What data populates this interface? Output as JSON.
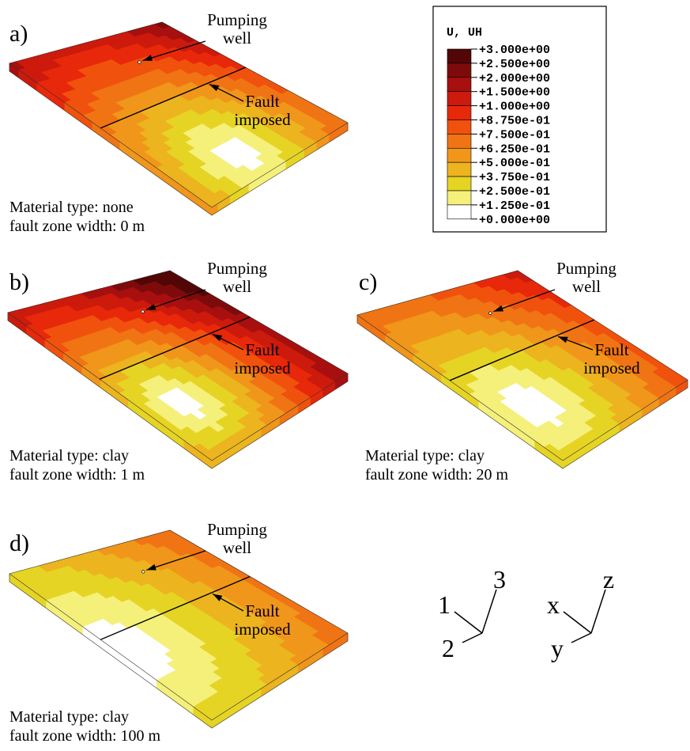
{
  "panels": [
    {
      "label": "a)",
      "well": [
        "Pumping",
        "well"
      ],
      "fault": [
        "Fault",
        "imposed"
      ],
      "material": "Material type: none",
      "width": "fault zone width: 0 m"
    },
    {
      "label": "b)",
      "well": [
        "Pumping",
        "well"
      ],
      "fault": [
        "Fault",
        "imposed"
      ],
      "material": "Material type: clay",
      "width": "fault zone width: 1 m"
    },
    {
      "label": "c)",
      "well": [
        "Pumping",
        "well"
      ],
      "fault": [
        "Fault",
        "imposed"
      ],
      "material": "Material type: clay",
      "width": "fault zone width: 20 m"
    },
    {
      "label": "d)",
      "well": [
        "Pumping",
        "well"
      ],
      "fault": [
        "Fault",
        "imposed"
      ],
      "material": "Material type: clay",
      "width": "fault zone width: 100 m"
    }
  ],
  "legend": {
    "title": "U, UH",
    "labels": [
      "+3.000e+00",
      "+2.500e+00",
      "+2.000e+00",
      "+1.500e+00",
      "+1.000e+00",
      "+8.750e-01",
      "+7.500e-01",
      "+6.250e-01",
      "+5.000e-01",
      "+3.750e-01",
      "+2.500e-01",
      "+1.250e-01",
      "+0.000e+00"
    ],
    "colors": [
      "#520606",
      "#7e0b0b",
      "#a80f0f",
      "#cc1a0c",
      "#e8280a",
      "#f0520e",
      "#f07414",
      "#f0961a",
      "#ecb41e",
      "#e6d424",
      "#f4f07a",
      "#ffffff"
    ]
  },
  "triads": [
    [
      "1",
      "2",
      "3"
    ],
    [
      "x",
      "y",
      "z"
    ]
  ]
}
